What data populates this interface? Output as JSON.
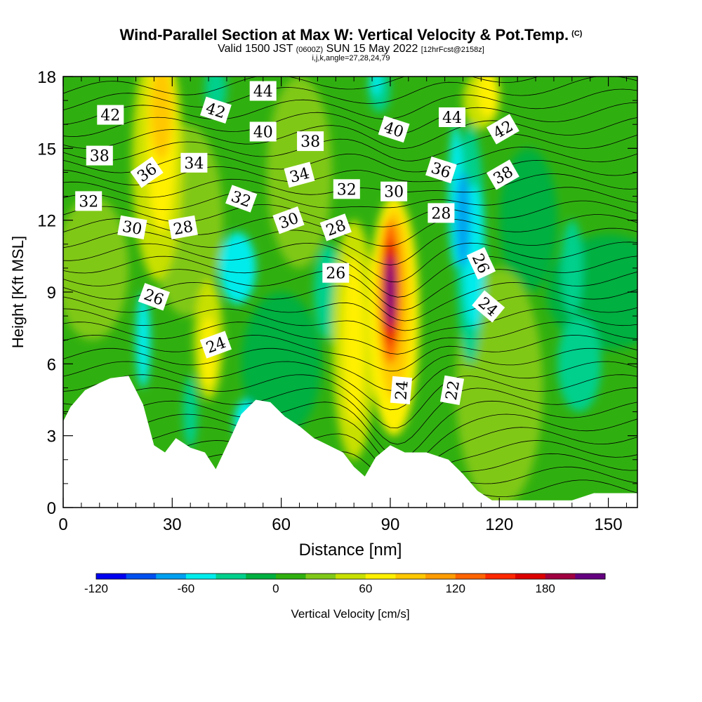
{
  "header": {
    "title": "Wind-Parallel Section at Max W: Vertical Velocity & Pot.Temp.",
    "copyright": "(C)",
    "valid_main_a": "Valid 1500 JST",
    "valid_zulu": "(0600Z)",
    "valid_main_b": "SUN 15 May 2022",
    "forecast": "[12hrFcst@2158z]",
    "indices": "i,j,k,angle=27,28,24,79"
  },
  "chart_data": {
    "type": "heatmap",
    "xlabel": "Distance [nm]",
    "ylabel": "Height [Kft MSL]",
    "xlim": [
      0,
      158
    ],
    "ylim": [
      0,
      18
    ],
    "x_ticks": [
      0,
      30,
      60,
      90,
      120,
      150
    ],
    "y_ticks": [
      0,
      3,
      6,
      9,
      12,
      15,
      18
    ],
    "colorbar": {
      "label": "Vertical Velocity [cm/s]",
      "min": -120,
      "max": 220,
      "step": 20,
      "tick_labels": [
        -120,
        -60,
        0,
        60,
        120,
        180
      ],
      "colors": [
        "#0000f0",
        "#0050f0",
        "#00a0f0",
        "#00ecec",
        "#00d08c",
        "#00b040",
        "#30b010",
        "#80c818",
        "#c8e000",
        "#fff000",
        "#ffc800",
        "#ff9c00",
        "#ff6400",
        "#ff2800",
        "#dc0000",
        "#a00040",
        "#640080"
      ]
    },
    "terrain": [
      [
        0,
        3.6
      ],
      [
        2,
        4.2
      ],
      [
        6,
        4.9
      ],
      [
        10,
        5.2
      ],
      [
        13,
        5.4
      ],
      [
        18,
        5.5
      ],
      [
        22,
        4.3
      ],
      [
        25,
        2.6
      ],
      [
        28,
        2.3
      ],
      [
        31,
        2.9
      ],
      [
        35,
        2.5
      ],
      [
        39,
        2.3
      ],
      [
        42,
        1.6
      ],
      [
        46,
        2.9
      ],
      [
        49,
        3.9
      ],
      [
        53,
        4.5
      ],
      [
        57,
        4.4
      ],
      [
        61,
        3.8
      ],
      [
        65,
        3.4
      ],
      [
        69,
        2.9
      ],
      [
        73,
        2.6
      ],
      [
        77,
        2.3
      ],
      [
        80,
        1.7
      ],
      [
        83,
        1.3
      ],
      [
        86,
        2.1
      ],
      [
        90,
        2.6
      ],
      [
        94,
        2.3
      ],
      [
        100,
        2.3
      ],
      [
        106,
        2.0
      ],
      [
        110,
        1.4
      ],
      [
        114,
        0.7
      ],
      [
        118,
        0.3
      ],
      [
        124,
        0.3
      ],
      [
        132,
        0.3
      ],
      [
        140,
        0.3
      ],
      [
        146,
        0.6
      ],
      [
        158,
        0.6
      ]
    ],
    "theta_contour_labels": [
      {
        "value": "44",
        "x": 55,
        "y": 17.4,
        "rot": 0
      },
      {
        "value": "42",
        "x": 13,
        "y": 16.4,
        "rot": 0
      },
      {
        "value": "42",
        "x": 42,
        "y": 16.6,
        "rot": 18
      },
      {
        "value": "40",
        "x": 55,
        "y": 15.7,
        "rot": 0
      },
      {
        "value": "40",
        "x": 91,
        "y": 15.8,
        "rot": 18
      },
      {
        "value": "44",
        "x": 107,
        "y": 16.3,
        "rot": 0
      },
      {
        "value": "42",
        "x": 121,
        "y": 15.8,
        "rot": -30
      },
      {
        "value": "38",
        "x": 10,
        "y": 14.7,
        "rot": 0
      },
      {
        "value": "38",
        "x": 68,
        "y": 15.3,
        "rot": 0
      },
      {
        "value": "36",
        "x": 23,
        "y": 14.0,
        "rot": -35
      },
      {
        "value": "34",
        "x": 36,
        "y": 14.4,
        "rot": 0
      },
      {
        "value": "34",
        "x": 65,
        "y": 13.9,
        "rot": -15
      },
      {
        "value": "36",
        "x": 104,
        "y": 14.1,
        "rot": 18
      },
      {
        "value": "38",
        "x": 121,
        "y": 13.9,
        "rot": -30
      },
      {
        "value": "32",
        "x": 7,
        "y": 12.8,
        "rot": 0
      },
      {
        "value": "32",
        "x": 49,
        "y": 12.9,
        "rot": 20
      },
      {
        "value": "32",
        "x": 78,
        "y": 13.3,
        "rot": 0
      },
      {
        "value": "30",
        "x": 91,
        "y": 13.2,
        "rot": 0
      },
      {
        "value": "30",
        "x": 19,
        "y": 11.7,
        "rot": 10
      },
      {
        "value": "28",
        "x": 33,
        "y": 11.7,
        "rot": -10
      },
      {
        "value": "30",
        "x": 62,
        "y": 12.0,
        "rot": -20
      },
      {
        "value": "28",
        "x": 75,
        "y": 11.7,
        "rot": -20
      },
      {
        "value": "28",
        "x": 104,
        "y": 12.3,
        "rot": 0
      },
      {
        "value": "26",
        "x": 115,
        "y": 10.2,
        "rot": 65
      },
      {
        "value": "26",
        "x": 75,
        "y": 9.8,
        "rot": 0
      },
      {
        "value": "26",
        "x": 25,
        "y": 8.8,
        "rot": 20
      },
      {
        "value": "24",
        "x": 117,
        "y": 8.4,
        "rot": 40
      },
      {
        "value": "24",
        "x": 42,
        "y": 6.8,
        "rot": -20
      },
      {
        "value": "24",
        "x": 93,
        "y": 4.9,
        "rot": -85
      },
      {
        "value": "22",
        "x": 107,
        "y": 4.9,
        "rot": -80
      }
    ]
  }
}
